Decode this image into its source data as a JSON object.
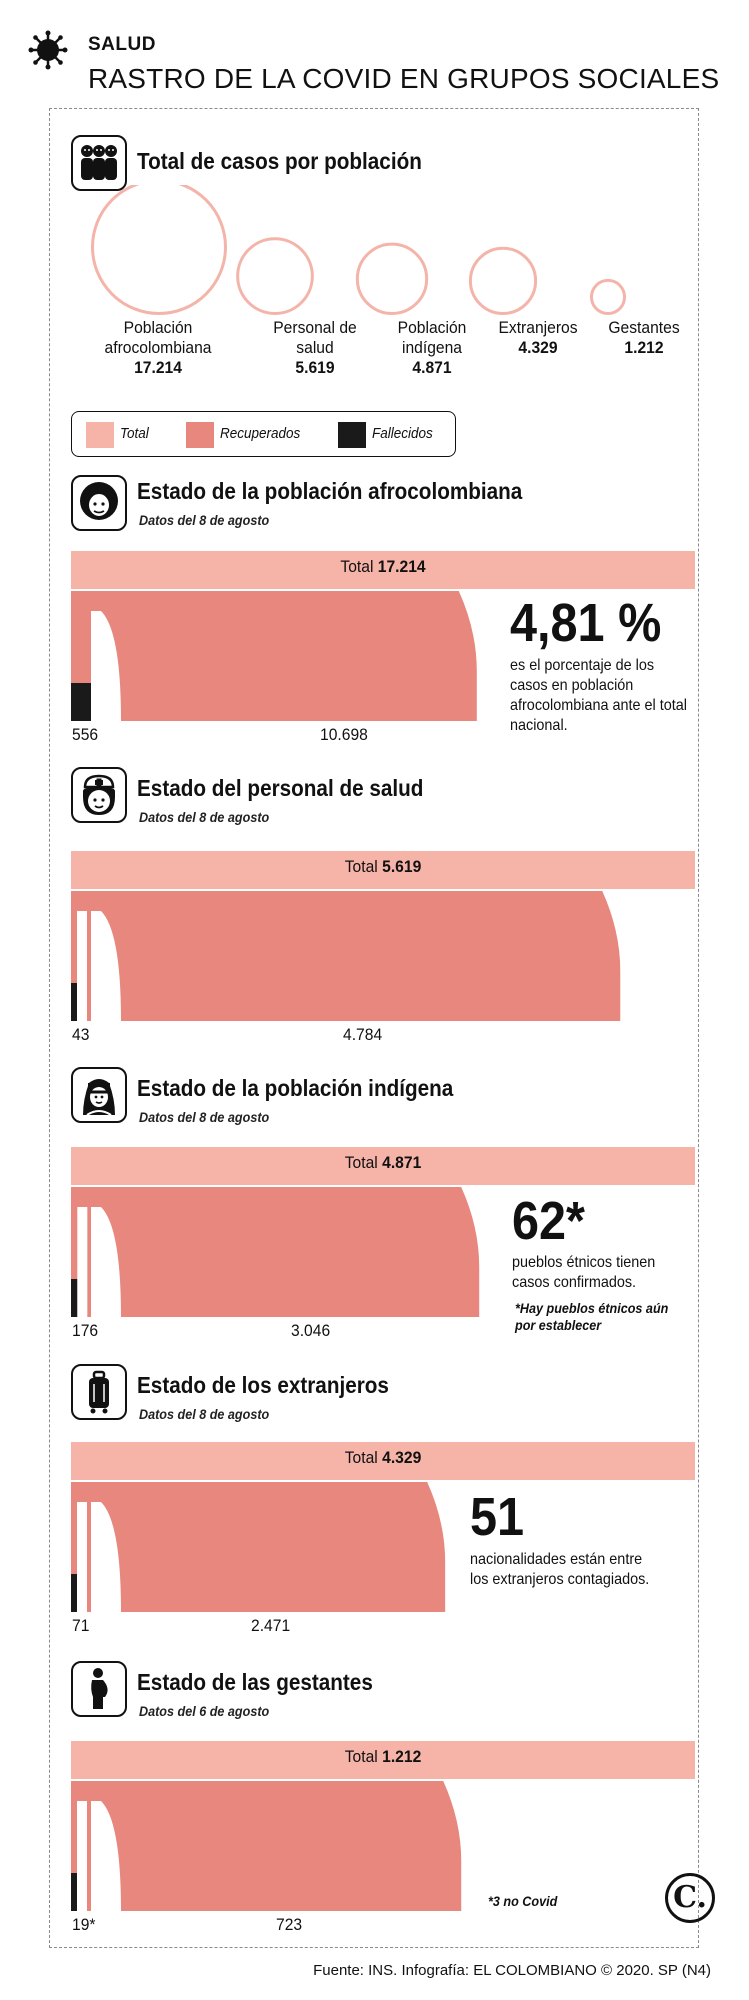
{
  "header": {
    "section": "SALUD",
    "title": "RASTRO DE LA COVID EN GRUPOS SOCIALES"
  },
  "colors": {
    "total": "#f6b3a8",
    "recuperados": "#e8877d",
    "fallecidos": "#1a1a1a",
    "circle": "#f4b4aa"
  },
  "population": {
    "title": "Total de casos por población",
    "icon": "people-group-icon",
    "chart_data": {
      "type": "bubble",
      "title": "Total de casos por población",
      "categories": [
        "Población afrocolombiana",
        "Personal de salud",
        "Población indígena",
        "Extranjeros",
        "Gestantes"
      ],
      "values": [
        17214,
        5619,
        4871,
        4329,
        1212
      ]
    },
    "items": [
      {
        "label": "Población afrocolombiana",
        "value": "17.214"
      },
      {
        "label": "Personal de salud",
        "value": "5.619"
      },
      {
        "label": "Población indígena",
        "value": "4.871"
      },
      {
        "label": "Extranjeros",
        "value": "4.329"
      },
      {
        "label": "Gestantes",
        "value": "1.212"
      }
    ]
  },
  "legend": {
    "total": "Total",
    "recuperados": "Recuperados",
    "fallecidos": "Fallecidos"
  },
  "sections": [
    {
      "title": "Estado de la población afrocolombiana",
      "subtitle": "Datos del 8 de agosto",
      "icon": "afro-person-icon",
      "total_label": "Total",
      "total_value": "17.214",
      "fallecidos_label": "556",
      "recuperados_label": "10.698",
      "stat": "4,81 %",
      "note": "es el porcentaje de los casos en población afrocolombiana ante el total nacional.",
      "note_small": "",
      "chart_data": {
        "type": "bar",
        "categories": [
          "Total",
          "Recuperados",
          "Fallecidos"
        ],
        "values": [
          17214,
          10698,
          556
        ]
      }
    },
    {
      "title": "Estado del personal de salud",
      "subtitle": "Datos del 8 de agosto",
      "icon": "nurse-icon",
      "total_label": "Total",
      "total_value": "5.619",
      "fallecidos_label": "43",
      "recuperados_label": "4.784",
      "stat": "",
      "note": "",
      "note_small": "",
      "chart_data": {
        "type": "bar",
        "categories": [
          "Total",
          "Recuperados",
          "Fallecidos"
        ],
        "values": [
          5619,
          4784,
          43
        ]
      }
    },
    {
      "title": "Estado de la población indígena",
      "subtitle": "Datos del 8 de agosto",
      "icon": "indigenous-person-icon",
      "total_label": "Total",
      "total_value": "4.871",
      "fallecidos_label": "176",
      "recuperados_label": "3.046",
      "stat": "62*",
      "note": "pueblos étnicos tienen casos confirmados.",
      "note_small": "*Hay pueblos étnicos aún por establecer",
      "chart_data": {
        "type": "bar",
        "categories": [
          "Total",
          "Recuperados",
          "Fallecidos"
        ],
        "values": [
          4871,
          3046,
          176
        ]
      }
    },
    {
      "title": "Estado de los extranjeros",
      "subtitle": "Datos del 8 de agosto",
      "icon": "suitcase-icon",
      "total_label": "Total",
      "total_value": "4.329",
      "fallecidos_label": "71",
      "recuperados_label": "2.471",
      "stat": "51",
      "note": "nacionalidades están entre los extranjeros contagiados.",
      "note_small": "",
      "chart_data": {
        "type": "bar",
        "categories": [
          "Total",
          "Recuperados",
          "Fallecidos"
        ],
        "values": [
          4329,
          2471,
          71
        ]
      }
    },
    {
      "title": "Estado de las gestantes",
      "subtitle": "Datos del 6 de agosto",
      "icon": "pregnant-woman-icon",
      "total_label": "Total",
      "total_value": "1.212",
      "fallecidos_label": "19*",
      "recuperados_label": "723",
      "stat": "",
      "note": "",
      "note_small": "*3 no Covid",
      "chart_data": {
        "type": "bar",
        "categories": [
          "Total",
          "Recuperados",
          "Fallecidos"
        ],
        "values": [
          1212,
          723,
          19
        ]
      }
    }
  ],
  "source": "Fuente: INS. Infografía: EL COLOMBIANO © 2020. SP (N4)",
  "logo": "C."
}
